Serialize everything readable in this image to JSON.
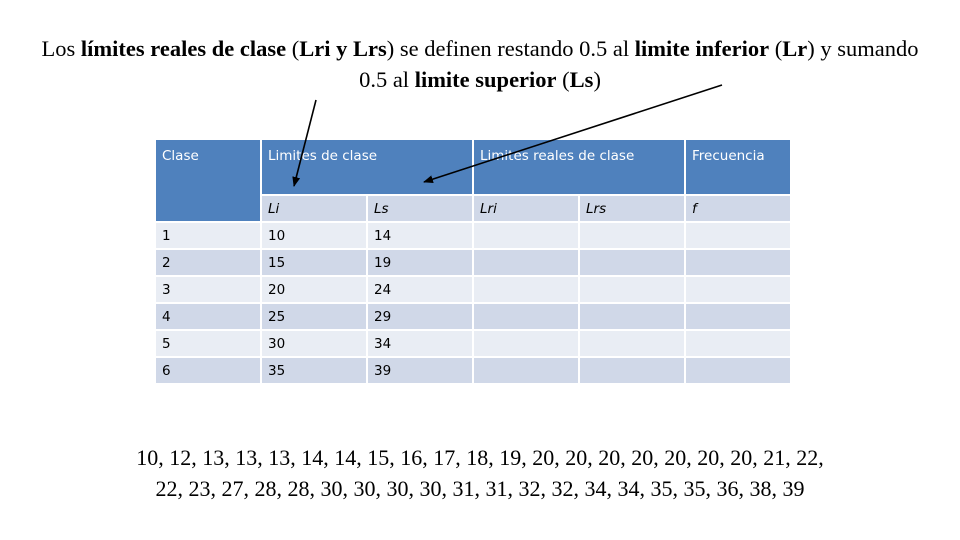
{
  "title": {
    "p1": "Los ",
    "b1": "límites reales de clase",
    "p2": " (",
    "b2": "Lri y Lrs",
    "p3": ") se definen restando 0.5 al ",
    "b3": "limite inferior",
    "p4": " (",
    "b4": "Lr",
    "p5": ") y sumando 0.5 al ",
    "b5": "limite superior",
    "p6": " (",
    "b6": "Ls",
    "p7": ")"
  },
  "table": {
    "headers": {
      "clase": "Clase",
      "limites": "Limites de clase",
      "reales": "Limites reales de clase",
      "frecuencia": "Frecuencia"
    },
    "subheaders": {
      "li": "Li",
      "ls": "Ls",
      "lri": "Lri",
      "lrs": "Lrs",
      "f": "f"
    },
    "rows": [
      {
        "clase": "1",
        "li": "10",
        "ls": "14",
        "lri": "",
        "lrs": "",
        "f": ""
      },
      {
        "clase": "2",
        "li": "15",
        "ls": "19",
        "lri": "",
        "lrs": "",
        "f": ""
      },
      {
        "clase": "3",
        "li": "20",
        "ls": "24",
        "lri": "",
        "lrs": "",
        "f": ""
      },
      {
        "clase": "4",
        "li": "25",
        "ls": "29",
        "lri": "",
        "lrs": "",
        "f": ""
      },
      {
        "clase": "5",
        "li": "30",
        "ls": "34",
        "lri": "",
        "lrs": "",
        "f": ""
      },
      {
        "clase": "6",
        "li": "35",
        "ls": "39",
        "lri": "",
        "lrs": "",
        "f": ""
      }
    ]
  },
  "data_list": {
    "line1": "10, 12, 13, 13, 13, 14, 14, 15, 16, 17, 18, 19, 20, 20, 20, 20, 20, 20, 20, 21, 22,",
    "line2": "22, 23, 27, 28, 28, 30, 30, 30, 30, 31, 31, 32, 32, 34, 34, 35, 35, 36, 38, 39"
  },
  "colors": {
    "header_bg": "#4f81bd",
    "row_dark": "#d0d8e8",
    "row_light": "#e9edf4"
  }
}
